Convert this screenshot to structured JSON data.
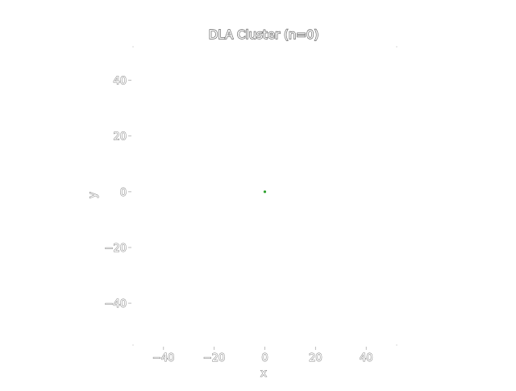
{
  "chart_data": {
    "type": "scatter",
    "title": "DLA Cluster (n=0)",
    "xlabel": "x",
    "ylabel": "y",
    "xlim": [
      -52,
      52
    ],
    "ylim": [
      -55,
      52
    ],
    "xticks": [
      -40,
      -20,
      0,
      20,
      40
    ],
    "yticks": [
      40,
      20,
      0,
      -20,
      -40
    ],
    "xtick_labels": [
      "−40",
      "−20",
      "0",
      "20",
      "40"
    ],
    "ytick_labels": [
      "40",
      "20",
      "0",
      "−20",
      "−40"
    ],
    "grid": false,
    "points": [
      {
        "x": 0,
        "y": 0
      }
    ],
    "point_color": "#2ca02c",
    "text_style": "outlined white"
  }
}
